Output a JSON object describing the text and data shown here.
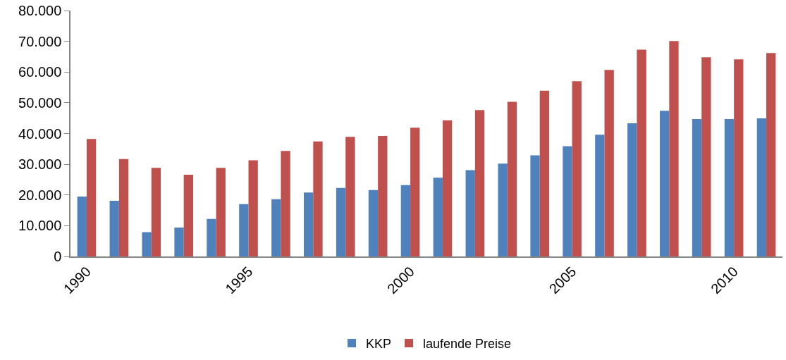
{
  "chart_data": {
    "type": "bar",
    "categories": [
      "1990",
      null,
      null,
      null,
      null,
      "1995",
      null,
      null,
      null,
      null,
      "2000",
      null,
      null,
      null,
      null,
      "2005",
      null,
      null,
      null,
      null,
      "2010",
      null
    ],
    "series": [
      {
        "name": "KKP",
        "color": "#4f81bd",
        "values": [
          19500,
          18100,
          7900,
          9400,
          12200,
          17000,
          18600,
          20800,
          22300,
          21600,
          23200,
          25600,
          28100,
          30200,
          32900,
          35900,
          39600,
          43300,
          47400,
          44700,
          44700,
          44900
        ]
      },
      {
        "name": "laufende Preise",
        "color": "#c0504d",
        "values": [
          38200,
          31700,
          28800,
          26600,
          28800,
          31300,
          34300,
          37400,
          38900,
          39200,
          41900,
          44300,
          47600,
          50300,
          53900,
          57000,
          60700,
          67300,
          70100,
          64800,
          64100,
          66200
        ]
      }
    ],
    "ylim": [
      0,
      80000
    ],
    "yticks": [
      {
        "value": 0,
        "label": "0"
      },
      {
        "value": 10000,
        "label": "10.000"
      },
      {
        "value": 20000,
        "label": "20.000"
      },
      {
        "value": 30000,
        "label": "30.000"
      },
      {
        "value": 40000,
        "label": "40.000"
      },
      {
        "value": 50000,
        "label": "50.000"
      },
      {
        "value": 60000,
        "label": "60.000"
      },
      {
        "value": 70000,
        "label": "70.000"
      },
      {
        "value": 80000,
        "label": "80.000"
      }
    ],
    "grid": false,
    "legend": "bottom"
  }
}
